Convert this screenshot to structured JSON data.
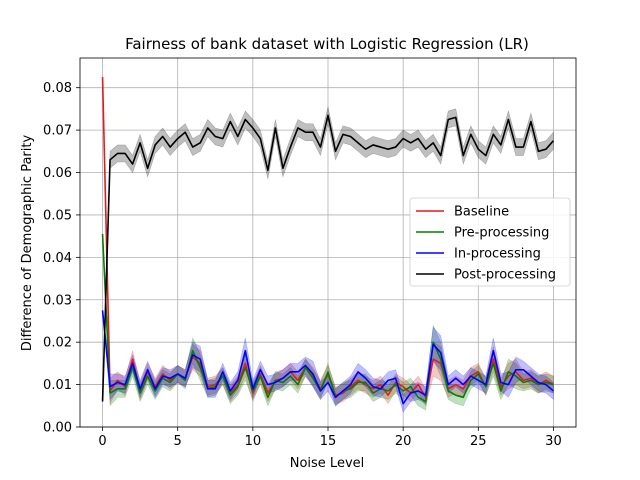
{
  "chart_data": {
    "type": "line",
    "title": "Fairness of bank dataset with Logistic Regression (LR)",
    "xlabel": "Noise Level",
    "ylabel": "Difference of Demographic Parity",
    "xlim": [
      -1.5,
      31.5
    ],
    "ylim": [
      0.0,
      0.087
    ],
    "xticks": [
      0,
      5,
      10,
      15,
      20,
      25,
      30
    ],
    "xtick_labels": [
      "0",
      "5",
      "10",
      "15",
      "20",
      "25",
      "30"
    ],
    "yticks": [
      0.0,
      0.01,
      0.02,
      0.03,
      0.04,
      0.05,
      0.06,
      0.07,
      0.08
    ],
    "ytick_labels": [
      "0.00",
      "0.01",
      "0.02",
      "0.03",
      "0.04",
      "0.05",
      "0.06",
      "0.07",
      "0.08"
    ],
    "grid": true,
    "legend_position": "center-right",
    "x": [
      0,
      0.5,
      1,
      1.5,
      2,
      2.5,
      3,
      3.5,
      4,
      4.5,
      5,
      5.5,
      6,
      6.5,
      7,
      7.5,
      8,
      8.5,
      9,
      9.5,
      10,
      10.5,
      11,
      11.5,
      12,
      12.5,
      13,
      13.5,
      14,
      14.5,
      15,
      15.5,
      16,
      16.5,
      17,
      17.5,
      18,
      18.5,
      19,
      19.5,
      20,
      20.5,
      21,
      21.5,
      22,
      22.5,
      23,
      23.5,
      24,
      24.5,
      25,
      25.5,
      26,
      26.5,
      27,
      27.5,
      28,
      28.5,
      29,
      29.5,
      30
    ],
    "series": [
      {
        "name": "Baseline",
        "color": "#e41a1c",
        "band_opacity": 0.25,
        "values": [
          0.0825,
          0.0085,
          0.011,
          0.0095,
          0.016,
          0.0085,
          0.013,
          0.0095,
          0.0125,
          0.011,
          0.0125,
          0.0115,
          0.0165,
          0.015,
          0.0095,
          0.01,
          0.012,
          0.008,
          0.01,
          0.015,
          0.008,
          0.0125,
          0.008,
          0.011,
          0.0115,
          0.013,
          0.011,
          0.014,
          0.012,
          0.009,
          0.0125,
          0.0075,
          0.008,
          0.0095,
          0.011,
          0.01,
          0.009,
          0.01,
          0.0075,
          0.0105,
          0.0095,
          0.008,
          0.01,
          0.007,
          0.016,
          0.015,
          0.009,
          0.01,
          0.009,
          0.012,
          0.013,
          0.0095,
          0.016,
          0.0095,
          0.012,
          0.013,
          0.011,
          0.0115,
          0.01,
          0.011,
          0.01
        ],
        "band": [
          0.0,
          0.003,
          0.002,
          0.002,
          0.002,
          0.002,
          0.002,
          0.002,
          0.002,
          0.002,
          0.002,
          0.002,
          0.003,
          0.003,
          0.002,
          0.002,
          0.002,
          0.002,
          0.002,
          0.003,
          0.002,
          0.002,
          0.002,
          0.002,
          0.002,
          0.002,
          0.002,
          0.002,
          0.002,
          0.002,
          0.002,
          0.002,
          0.002,
          0.002,
          0.002,
          0.002,
          0.002,
          0.002,
          0.002,
          0.002,
          0.002,
          0.002,
          0.002,
          0.002,
          0.004,
          0.004,
          0.002,
          0.002,
          0.002,
          0.002,
          0.002,
          0.002,
          0.003,
          0.002,
          0.003,
          0.003,
          0.002,
          0.002,
          0.002,
          0.002,
          0.002
        ]
      },
      {
        "name": "Pre-processing",
        "color": "#008000",
        "band_opacity": 0.25,
        "values": [
          0.0455,
          0.008,
          0.009,
          0.009,
          0.014,
          0.008,
          0.012,
          0.0085,
          0.0115,
          0.0105,
          0.0125,
          0.011,
          0.018,
          0.014,
          0.009,
          0.0095,
          0.012,
          0.0075,
          0.0095,
          0.014,
          0.0085,
          0.012,
          0.007,
          0.011,
          0.0105,
          0.012,
          0.01,
          0.014,
          0.0115,
          0.0085,
          0.013,
          0.007,
          0.0085,
          0.009,
          0.0105,
          0.0105,
          0.008,
          0.009,
          0.0085,
          0.01,
          0.0085,
          0.0095,
          0.007,
          0.006,
          0.02,
          0.016,
          0.0085,
          0.0075,
          0.007,
          0.011,
          0.0125,
          0.0095,
          0.015,
          0.0085,
          0.013,
          0.012,
          0.0105,
          0.011,
          0.01,
          0.0105,
          0.01
        ],
        "band": [
          0.0,
          0.003,
          0.002,
          0.002,
          0.002,
          0.002,
          0.002,
          0.002,
          0.002,
          0.002,
          0.002,
          0.002,
          0.003,
          0.003,
          0.002,
          0.002,
          0.002,
          0.002,
          0.002,
          0.003,
          0.002,
          0.002,
          0.002,
          0.002,
          0.002,
          0.002,
          0.002,
          0.002,
          0.002,
          0.002,
          0.002,
          0.002,
          0.002,
          0.002,
          0.002,
          0.002,
          0.002,
          0.002,
          0.002,
          0.002,
          0.002,
          0.002,
          0.002,
          0.002,
          0.004,
          0.004,
          0.002,
          0.002,
          0.002,
          0.002,
          0.002,
          0.002,
          0.003,
          0.002,
          0.003,
          0.003,
          0.002,
          0.002,
          0.002,
          0.002,
          0.002
        ]
      },
      {
        "name": "In-processing",
        "color": "#0000ff",
        "band_opacity": 0.25,
        "values": [
          0.0275,
          0.0095,
          0.0105,
          0.01,
          0.015,
          0.009,
          0.0135,
          0.009,
          0.012,
          0.0115,
          0.0125,
          0.0115,
          0.017,
          0.016,
          0.009,
          0.009,
          0.013,
          0.0085,
          0.011,
          0.018,
          0.009,
          0.0135,
          0.01,
          0.0105,
          0.0115,
          0.013,
          0.013,
          0.0145,
          0.0125,
          0.0085,
          0.0105,
          0.007,
          0.0085,
          0.01,
          0.013,
          0.0115,
          0.0095,
          0.009,
          0.011,
          0.0115,
          0.0055,
          0.008,
          0.0085,
          0.0075,
          0.0195,
          0.0175,
          0.01,
          0.0115,
          0.01,
          0.012,
          0.011,
          0.01,
          0.018,
          0.0105,
          0.01,
          0.0135,
          0.0135,
          0.012,
          0.0105,
          0.01,
          0.0085
        ],
        "band": [
          0.0,
          0.003,
          0.002,
          0.002,
          0.002,
          0.002,
          0.002,
          0.002,
          0.002,
          0.002,
          0.002,
          0.002,
          0.003,
          0.003,
          0.002,
          0.002,
          0.002,
          0.002,
          0.002,
          0.003,
          0.002,
          0.002,
          0.002,
          0.002,
          0.002,
          0.002,
          0.002,
          0.002,
          0.003,
          0.002,
          0.002,
          0.002,
          0.002,
          0.002,
          0.002,
          0.002,
          0.002,
          0.002,
          0.002,
          0.002,
          0.002,
          0.002,
          0.002,
          0.002,
          0.004,
          0.004,
          0.002,
          0.002,
          0.002,
          0.002,
          0.002,
          0.002,
          0.003,
          0.002,
          0.003,
          0.003,
          0.002,
          0.002,
          0.002,
          0.002,
          0.002
        ]
      },
      {
        "name": "Post-processing",
        "color": "#000000",
        "band_opacity": 0.25,
        "values": [
          0.006,
          0.063,
          0.0645,
          0.0645,
          0.062,
          0.067,
          0.061,
          0.0665,
          0.0685,
          0.066,
          0.068,
          0.0695,
          0.066,
          0.067,
          0.0705,
          0.0685,
          0.068,
          0.072,
          0.0685,
          0.0725,
          0.0705,
          0.068,
          0.0605,
          0.0705,
          0.061,
          0.066,
          0.0705,
          0.0695,
          0.0695,
          0.066,
          0.0735,
          0.065,
          0.069,
          0.0685,
          0.067,
          0.0655,
          0.0665,
          0.066,
          0.0655,
          0.066,
          0.068,
          0.067,
          0.068,
          0.0655,
          0.067,
          0.064,
          0.0725,
          0.073,
          0.064,
          0.069,
          0.0655,
          0.064,
          0.069,
          0.0665,
          0.0725,
          0.066,
          0.066,
          0.072,
          0.065,
          0.0655,
          0.0675
        ],
        "band": [
          0.0,
          0.002,
          0.002,
          0.002,
          0.002,
          0.002,
          0.002,
          0.002,
          0.002,
          0.002,
          0.002,
          0.002,
          0.002,
          0.002,
          0.002,
          0.002,
          0.002,
          0.002,
          0.002,
          0.002,
          0.002,
          0.002,
          0.002,
          0.002,
          0.002,
          0.002,
          0.002,
          0.002,
          0.002,
          0.002,
          0.002,
          0.002,
          0.002,
          0.002,
          0.002,
          0.002,
          0.002,
          0.002,
          0.002,
          0.002,
          0.002,
          0.002,
          0.002,
          0.002,
          0.002,
          0.002,
          0.002,
          0.002,
          0.002,
          0.002,
          0.002,
          0.002,
          0.002,
          0.002,
          0.002,
          0.002,
          0.002,
          0.002,
          0.002,
          0.002,
          0.002
        ]
      }
    ]
  }
}
